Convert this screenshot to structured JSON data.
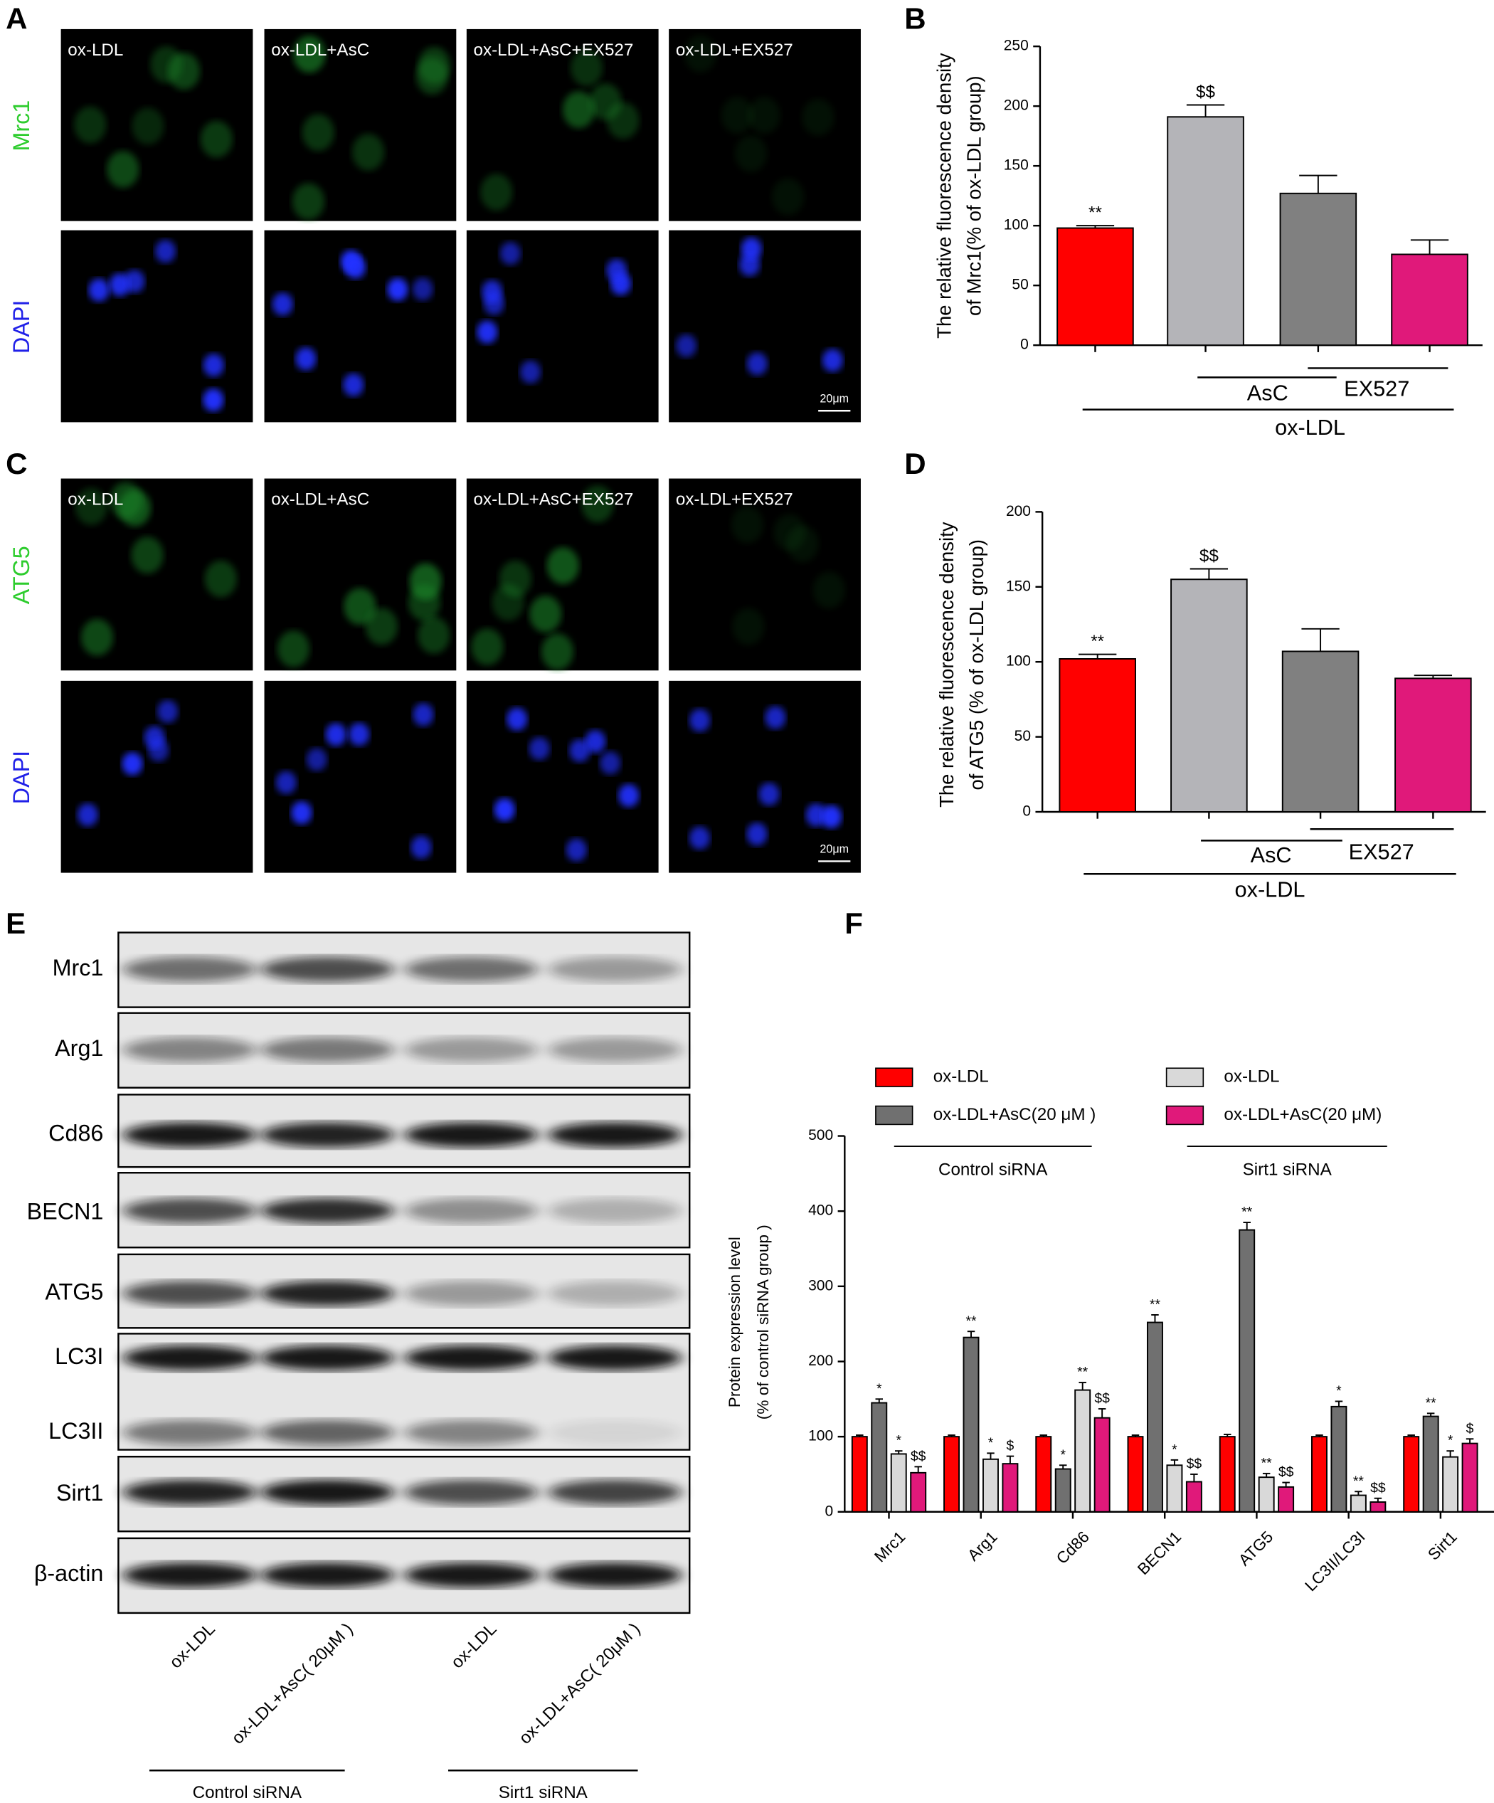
{
  "panels": {
    "letters": [
      "A",
      "B",
      "C",
      "D",
      "E",
      "F"
    ]
  },
  "micrographs": [
    {
      "columns": [
        "ox-LDL",
        "ox-LDL+AsC",
        "ox-LDL+AsC+EX527",
        "ox-LDL+EX527"
      ],
      "rows": [
        "Mrc1",
        "DAPI"
      ],
      "scale_bar": "20μm"
    },
    {
      "columns": [
        "ox-LDL",
        "ox-LDL+AsC",
        "ox-LDL+AsC+EX527",
        "ox-LDL+EX527"
      ],
      "rows": [
        "ATG5",
        "DAPI"
      ],
      "scale_bar": "20μm"
    }
  ],
  "blot": {
    "rows": [
      "Mrc1",
      "Arg1",
      "Cd86",
      "BECN1",
      "ATG5",
      "LC3I",
      "LC3II",
      "Sirt1",
      "β-actin"
    ],
    "lanes": [
      "ox-LDL",
      "ox-LDL+AsC( 20μM )",
      "ox-LDL",
      "ox-LDL+AsC( 20μM )"
    ],
    "groups": [
      "Control siRNA",
      "Sirt1  siRNA"
    ]
  },
  "chart_data": [
    {
      "type": "bar",
      "ylabel": [
        "The relative fluorescence density",
        "of Mrc1(% of  ox-LDL group)"
      ],
      "categories": [
        null,
        null,
        null,
        null
      ],
      "values": [
        98,
        191,
        127,
        76
      ],
      "errors": [
        2,
        10,
        15,
        12
      ],
      "colors": [
        "#ff0000",
        "#b4b4b8",
        "#808080",
        "#e0197a"
      ],
      "annotations": [
        "**",
        "$$",
        null,
        null
      ],
      "ylim": [
        0,
        250
      ],
      "yticks": [
        0,
        50,
        100,
        150,
        200,
        250
      ],
      "treatments": [
        "AsC",
        "EX527",
        "ox-LDL"
      ]
    },
    {
      "type": "bar",
      "ylabel": [
        "The relative fluorescence density",
        "of ATG5 (% of  ox-LDL group)"
      ],
      "categories": [
        null,
        null,
        null,
        null
      ],
      "values": [
        102,
        155,
        107,
        89
      ],
      "errors": [
        3,
        7,
        15,
        2
      ],
      "colors": [
        "#ff0000",
        "#b4b4b8",
        "#808080",
        "#e0197a"
      ],
      "annotations": [
        "**",
        "$$",
        null,
        null
      ],
      "ylim": [
        0,
        200
      ],
      "yticks": [
        0,
        50,
        100,
        150,
        200
      ],
      "treatments": [
        "AsC",
        "EX527",
        "ox-LDL"
      ]
    },
    {
      "type": "grouped_bar",
      "ylabel": [
        "Protein expression level",
        "(% of control siRNA group )"
      ],
      "categories": [
        "Mrc1",
        "Arg1",
        "Cd86",
        "BECN1",
        "ATG5",
        "LC3II/LC3I",
        "Sirt1"
      ],
      "series": [
        {
          "name": "ox-LDL",
          "color": "#ff0000",
          "values": [
            100,
            100,
            100,
            100,
            100,
            100,
            100
          ],
          "errors": [
            2,
            2,
            2,
            2,
            3,
            2,
            2
          ],
          "annotations": [
            null,
            null,
            null,
            null,
            null,
            null,
            null
          ]
        },
        {
          "name": "ox-LDL+AsC(20 μM )",
          "color": "#707070",
          "values": [
            145,
            232,
            57,
            252,
            375,
            140,
            127
          ],
          "errors": [
            5,
            8,
            5,
            10,
            10,
            7,
            4
          ],
          "annotations": [
            "*",
            "**",
            "*",
            "**",
            "**",
            "*",
            "**"
          ]
        },
        {
          "name": "ox-LDL",
          "color": "#d9d9d9",
          "values": [
            77,
            70,
            162,
            62,
            46,
            22,
            73
          ],
          "errors": [
            4,
            8,
            10,
            7,
            5,
            5,
            8
          ],
          "annotations": [
            "*",
            "*",
            "**",
            "*",
            "**",
            "**",
            "*"
          ]
        },
        {
          "name": "ox-LDL+AsC(20 μM)",
          "color": "#e0197a",
          "values": [
            52,
            64,
            125,
            40,
            33,
            13,
            91
          ],
          "errors": [
            8,
            10,
            12,
            10,
            6,
            5,
            6
          ],
          "annotations": [
            "$$",
            "$",
            "$$",
            "$$",
            "$$",
            "$$",
            "$"
          ]
        }
      ],
      "groups": [
        "Control siRNA",
        "Sirt1 siRNA"
      ],
      "ylim": [
        0,
        500
      ],
      "yticks": [
        0,
        100,
        200,
        300,
        400,
        500
      ]
    }
  ]
}
